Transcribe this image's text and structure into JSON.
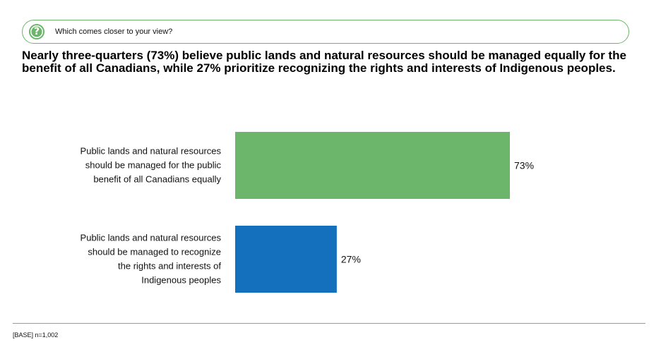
{
  "question": {
    "icon": "question-icon",
    "icon_glyph": "?",
    "text": "Which comes closer to your view?"
  },
  "headline": "Nearly three-quarters (73%) believe public lands and natural resources should be managed equally for the benefit of all Canadians, while 27% prioritize recognizing the rights and interests of Indigenous peoples.",
  "colors": {
    "accent_green": "#6cb66b",
    "bar_blue": "#146fbd"
  },
  "chart_data": {
    "type": "bar",
    "orientation": "horizontal",
    "categories": [
      [
        "Public lands and natural resources",
        "should be managed for the public",
        "benefit of all Canadians equally"
      ],
      [
        "Public lands and natural resources",
        "should be managed to recognize",
        "the rights and interests of",
        "Indigenous peoples"
      ]
    ],
    "values": [
      73,
      27
    ],
    "value_labels": [
      "73%",
      "27%"
    ],
    "colors": [
      "#6cb66b",
      "#146fbd"
    ],
    "xlim": [
      0,
      100
    ],
    "grid": false
  },
  "footer": {
    "base": "[BASE] n=1,002"
  }
}
